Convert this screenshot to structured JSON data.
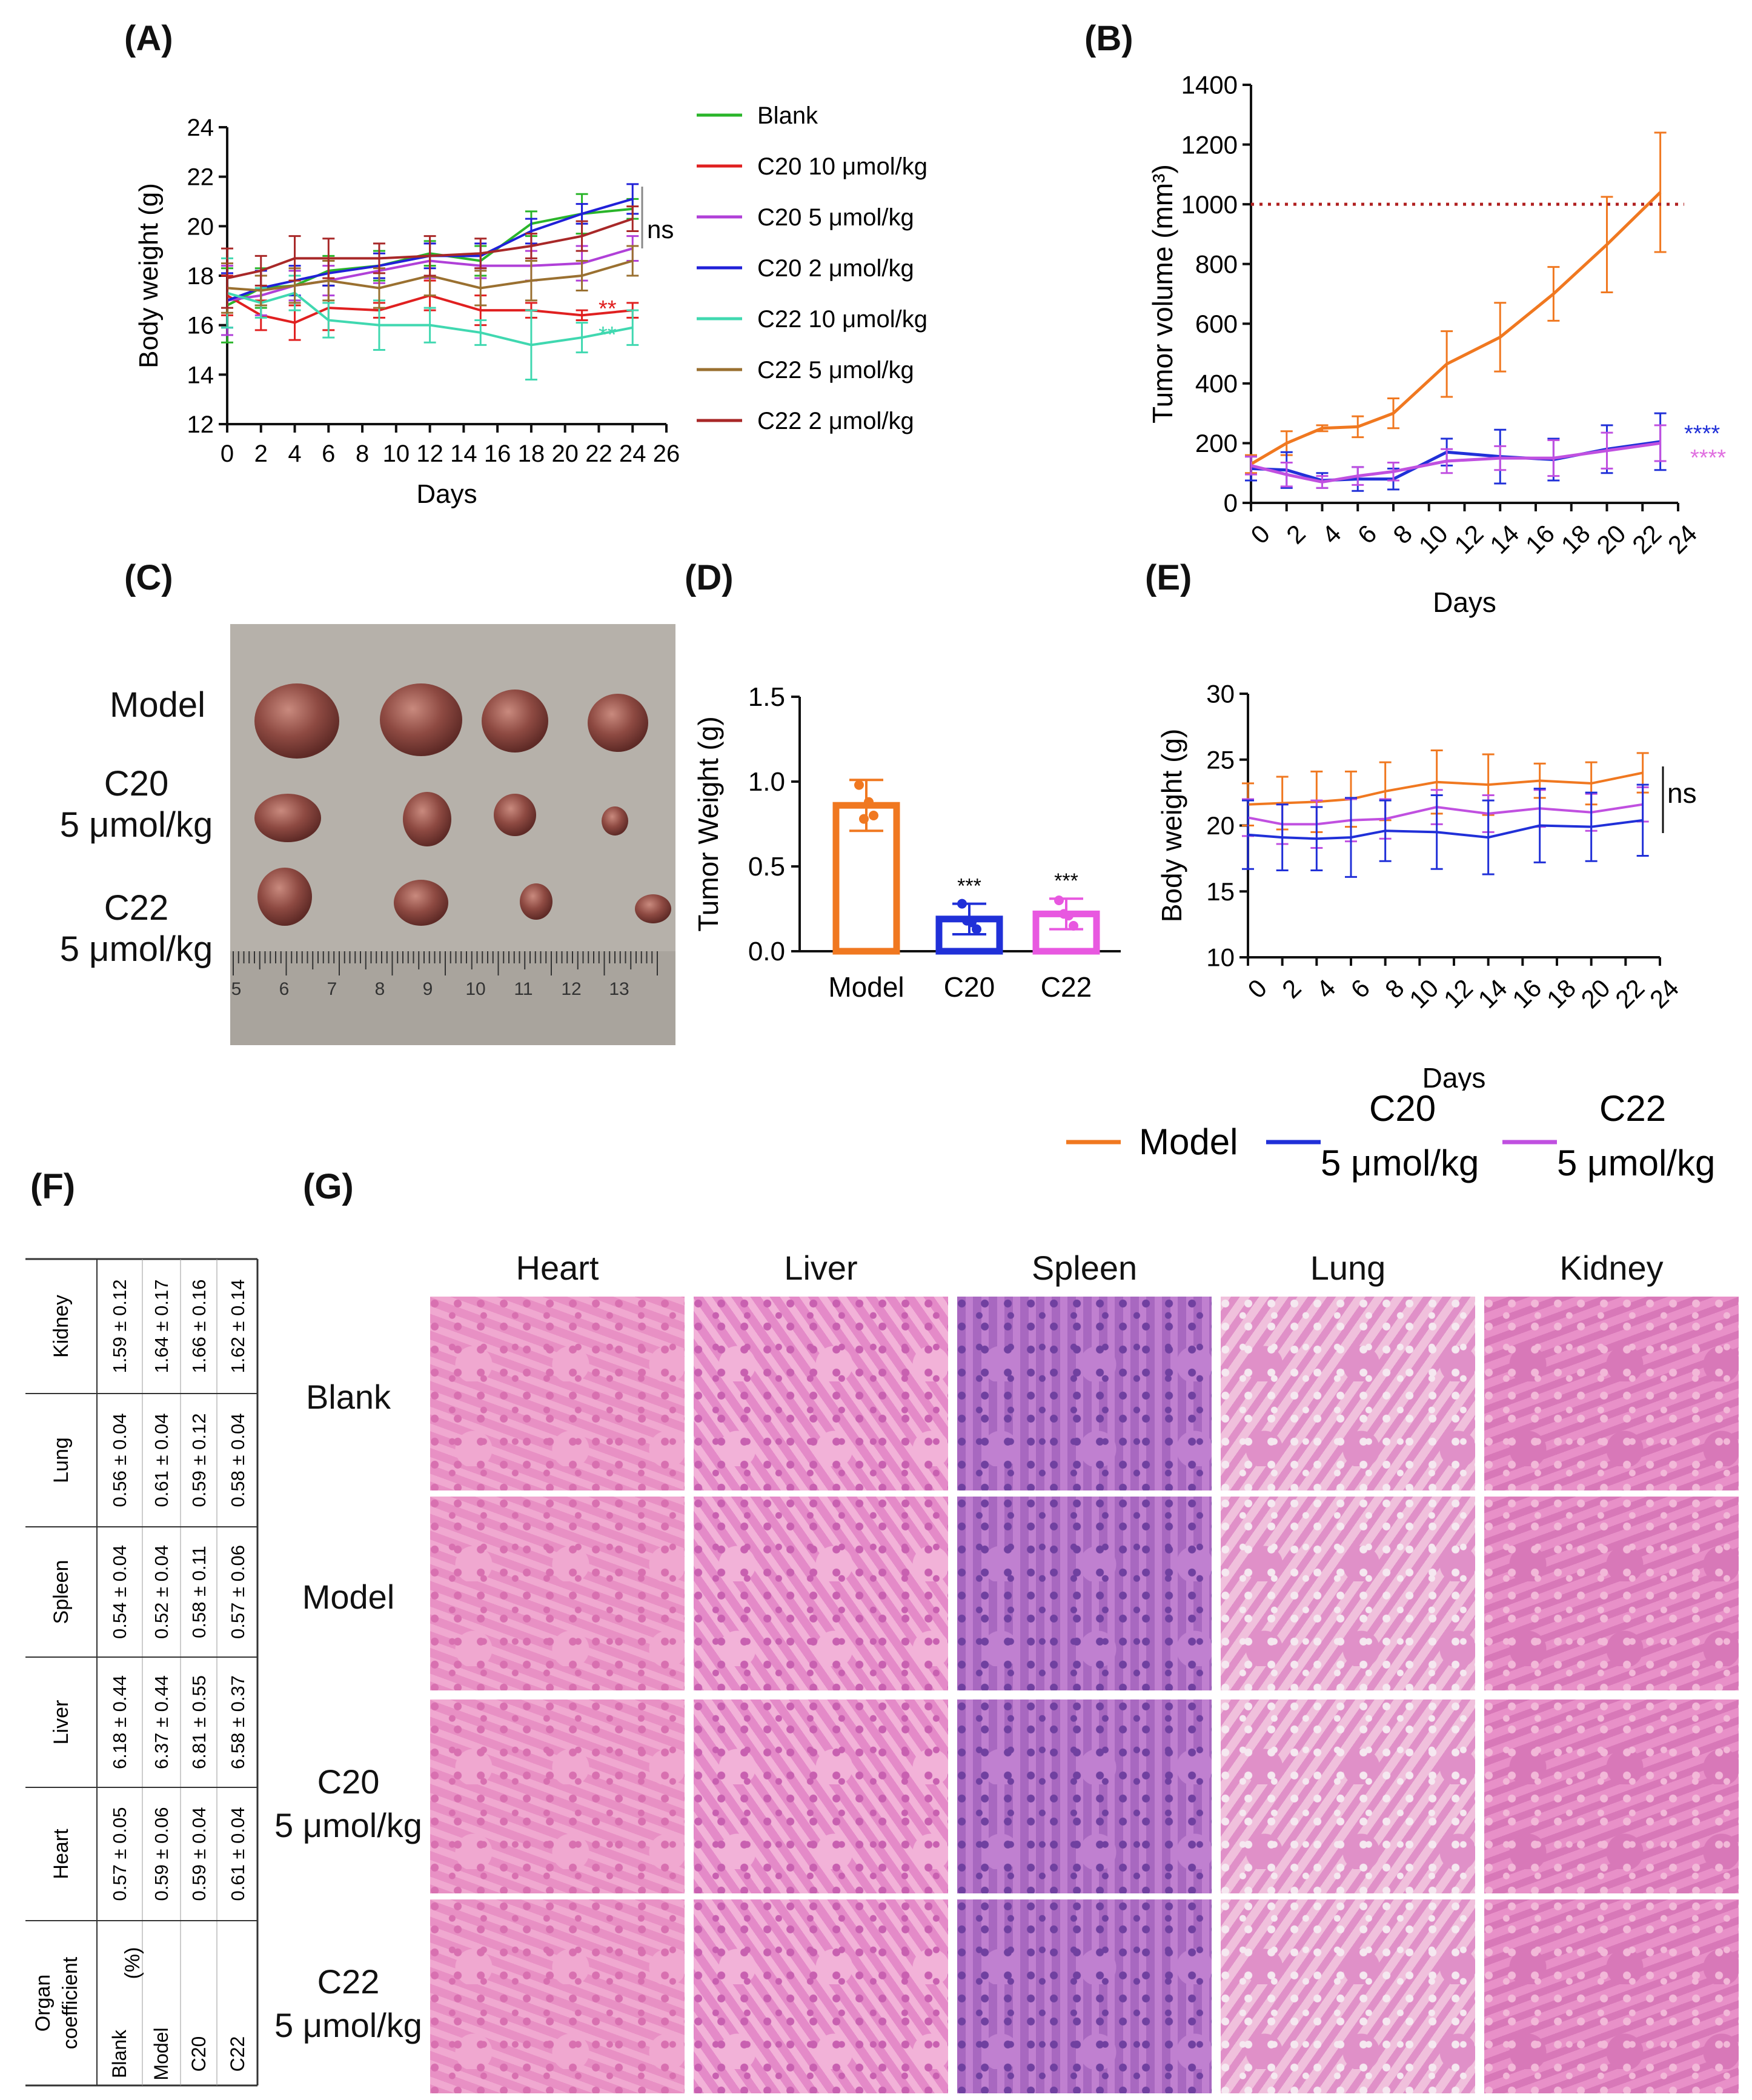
{
  "panels": {
    "a": "(A)",
    "b": "(B)",
    "c": "(C)",
    "d": "(D)",
    "e": "(E)",
    "f": "(F)",
    "g": "(G)"
  },
  "chart_data": [
    {
      "id": "A",
      "type": "line",
      "xlabel": "Days",
      "ylabel": "Body weight (g)",
      "xlim": [
        0,
        26
      ],
      "ylim": [
        12,
        24
      ],
      "xticks": [
        "0",
        "2",
        "4",
        "6",
        "8",
        "10",
        "12",
        "14",
        "16",
        "18",
        "20",
        "22",
        "24",
        "26"
      ],
      "yticks": [
        "12",
        "14",
        "16",
        "18",
        "20",
        "22",
        "24"
      ],
      "x": [
        0,
        2,
        4,
        6,
        9,
        12,
        15,
        18,
        21,
        24
      ],
      "series": [
        {
          "name": "Blank",
          "color": "#2ab52a",
          "values": [
            16.8,
            17.5,
            17.6,
            18.2,
            18.4,
            18.9,
            18.6,
            20.1,
            20.5,
            20.7
          ]
        },
        {
          "name": "C20 10 μmol/kg",
          "color": "#e02020",
          "values": [
            17.2,
            16.4,
            16.1,
            16.7,
            16.6,
            17.2,
            16.6,
            16.6,
            16.4,
            16.6
          ]
        },
        {
          "name": "C20 5 μmol/kg",
          "color": "#b040d8",
          "values": [
            17.0,
            17.2,
            17.6,
            17.8,
            18.2,
            18.6,
            18.4,
            18.4,
            18.5,
            19.1
          ]
        },
        {
          "name": "C20 2 μmol/kg",
          "color": "#2020d8",
          "values": [
            17.0,
            17.5,
            17.8,
            18.1,
            18.4,
            18.8,
            18.8,
            19.8,
            20.5,
            21.1
          ]
        },
        {
          "name": "C22 10 μmol/kg",
          "color": "#40d8b0",
          "values": [
            17.3,
            16.9,
            17.3,
            16.2,
            16.0,
            16.0,
            15.7,
            15.2,
            15.5,
            15.9
          ]
        },
        {
          "name": "C22 5 μmol/kg",
          "color": "#9a7030",
          "values": [
            17.5,
            17.4,
            17.6,
            17.8,
            17.5,
            18.0,
            17.5,
            17.8,
            18.0,
            18.6
          ]
        },
        {
          "name": "C22 2 μmol/kg",
          "color": "#a82828",
          "values": [
            17.9,
            18.2,
            18.7,
            18.7,
            18.7,
            18.8,
            18.9,
            19.2,
            19.6,
            20.3
          ]
        }
      ],
      "annotations": {
        "ns": "ns",
        "star_red": "**",
        "star_teal": "**"
      },
      "grid": false,
      "legend": "right"
    },
    {
      "id": "B",
      "type": "line",
      "xlabel": "Days",
      "ylabel": "Tumor volume (mm³)",
      "xlim": [
        0,
        24
      ],
      "ylim": [
        0,
        1400
      ],
      "xticks": [
        "0",
        "2",
        "4",
        "6",
        "8",
        "10",
        "12",
        "14",
        "16",
        "18",
        "20",
        "22",
        "24"
      ],
      "yticks": [
        "0",
        "200",
        "400",
        "600",
        "800",
        "1000",
        "1200",
        "1400"
      ],
      "reference_line": 1000,
      "x": [
        0,
        2,
        4,
        6,
        8,
        11,
        14,
        17,
        20,
        23
      ],
      "series": [
        {
          "name": "Model",
          "color": "#f07820",
          "values": [
            130,
            200,
            250,
            255,
            300,
            465,
            555,
            700,
            865,
            1040
          ]
        },
        {
          "name": "C20 5 μmol/kg",
          "color": "#2030d8",
          "values": [
            115,
            110,
            75,
            80,
            80,
            170,
            155,
            145,
            180,
            205
          ]
        },
        {
          "name": "C22 5 μmol/kg",
          "color": "#c050e0",
          "values": [
            125,
            95,
            70,
            90,
            105,
            140,
            150,
            150,
            175,
            200
          ]
        }
      ],
      "annotations": {
        "blue": "****",
        "pink": "****"
      },
      "grid": false
    },
    {
      "id": "D",
      "type": "bar",
      "ylabel": "Tumor Weight (g)",
      "ylim": [
        0,
        1.5
      ],
      "yticks": [
        "0.0",
        "0.5",
        "1.0",
        "1.5"
      ],
      "categories": [
        "Model",
        "C20",
        "C22"
      ],
      "values": [
        0.86,
        0.19,
        0.22
      ],
      "errors": [
        0.15,
        0.09,
        0.09
      ],
      "colors": [
        "#f07820",
        "#2030d8",
        "#e858e0"
      ],
      "stars": [
        "",
        "***",
        "***"
      ]
    },
    {
      "id": "E",
      "type": "line",
      "xlabel": "Days",
      "ylabel": "Body weight (g)",
      "xlim": [
        0,
        24
      ],
      "ylim": [
        10,
        30
      ],
      "xticks": [
        "0",
        "2",
        "4",
        "6",
        "8",
        "10",
        "12",
        "14",
        "16",
        "18",
        "20",
        "22",
        "24"
      ],
      "yticks": [
        "10",
        "15",
        "20",
        "25",
        "30"
      ],
      "x": [
        0,
        2,
        4,
        6,
        8,
        11,
        14,
        17,
        20,
        23
      ],
      "series": [
        {
          "name": "Model",
          "color": "#f07820",
          "values": [
            21.6,
            21.7,
            21.8,
            22.0,
            22.6,
            23.3,
            23.1,
            23.4,
            23.2,
            24.0
          ]
        },
        {
          "name": "C22",
          "color": "#c050e0",
          "values": [
            20.6,
            20.1,
            20.1,
            20.4,
            20.5,
            21.4,
            20.9,
            21.3,
            21.0,
            21.6
          ]
        },
        {
          "name": "C20",
          "color": "#2030d8",
          "values": [
            19.3,
            19.1,
            19.0,
            19.1,
            19.6,
            19.5,
            19.1,
            20.0,
            19.9,
            20.4
          ]
        }
      ],
      "annotations": {
        "ns": "ns"
      }
    }
  ],
  "legend_be": {
    "model": "Model",
    "c20_a": "C20",
    "c20_b": "5 μmol/kg",
    "c22_a": "C22",
    "c22_b": "5 μmol/kg"
  },
  "photo": {
    "rows": [
      {
        "line1": "Model",
        "line2": ""
      },
      {
        "line1": "C20",
        "line2": "5 μmol/kg"
      },
      {
        "line1": "C22",
        "line2": "5 μmol/kg"
      }
    ],
    "ruler": [
      "5",
      "6",
      "7",
      "8",
      "9",
      "10",
      "11",
      "12",
      "13"
    ]
  },
  "table_f": {
    "header": "Organ coefficient (%)",
    "groups": [
      "Blank",
      "Model",
      "C20",
      "C22"
    ],
    "organs": [
      {
        "name": "Heart",
        "values": [
          "0.57 ± 0.05",
          "0.59 ± 0.06",
          "0.59 ± 0.04",
          "0.61 ± 0.04"
        ]
      },
      {
        "name": "Liver",
        "values": [
          "6.18 ± 0.44",
          "6.37 ± 0.44",
          "6.81 ± 0.55",
          "6.58 ± 0.37"
        ]
      },
      {
        "name": "Spleen",
        "values": [
          "0.54 ± 0.04",
          "0.52 ± 0.04",
          "0.58 ± 0.11",
          "0.57 ± 0.06"
        ]
      },
      {
        "name": "Lung",
        "values": [
          "0.56 ± 0.04",
          "0.61 ± 0.04",
          "0.59 ± 0.12",
          "0.58 ± 0.04"
        ]
      },
      {
        "name": "Kidney",
        "values": [
          "1.59 ± 0.12",
          "1.64 ± 0.17",
          "1.66 ± 0.16",
          "1.62 ± 0.14"
        ]
      }
    ]
  },
  "histology": {
    "columns": [
      "Heart",
      "Liver",
      "Spleen",
      "Lung",
      "Kidney"
    ],
    "rows": [
      {
        "line1": "Blank",
        "line2": ""
      },
      {
        "line1": "Model",
        "line2": ""
      },
      {
        "line1": "C20",
        "line2": "5 μmol/kg"
      },
      {
        "line1": "C22",
        "line2": "5 μmol/kg"
      }
    ]
  }
}
